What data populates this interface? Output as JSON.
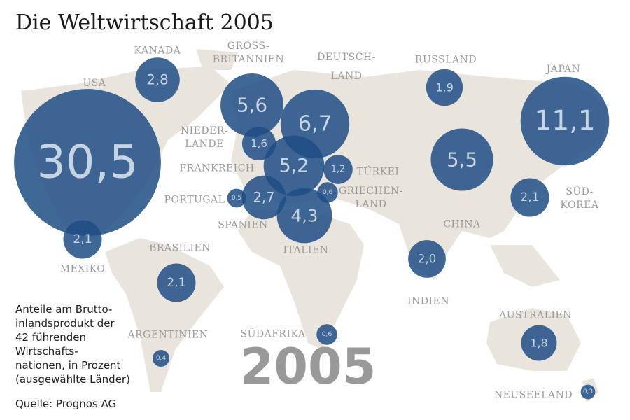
{
  "chart_data": {
    "type": "bubble_map",
    "title": "Die Weltwirtschaft 2005",
    "categories": [
      [
        "USA"
      ],
      [
        "KANADA"
      ],
      [
        "GROSS-",
        "BRITANNIEN"
      ],
      [
        "DEUTSCH-",
        "LAND"
      ],
      [
        "NIEDER-",
        "LANDE"
      ],
      [
        "FRANKREICH"
      ],
      [
        "TÜRKEI"
      ],
      [
        "GRIECHEN-",
        "LAND"
      ],
      [
        "PORTUGAL"
      ],
      [
        "SPANIEN"
      ],
      [
        "ITALIEN"
      ],
      [
        "RUSSLAND"
      ],
      [
        "CHINA"
      ],
      [
        "JAPAN"
      ],
      [
        "SÜD-",
        "KOREA"
      ],
      [
        "INDIEN"
      ],
      [
        "AUSTRALIEN"
      ],
      [
        "NEUSEELAND"
      ],
      [
        "MEXIKO"
      ],
      [
        "BRASILIEN"
      ],
      [
        "ARGENTINIEN"
      ],
      [
        "SÜDAFRIKA"
      ]
    ],
    "values": [
      30.5,
      2.8,
      5.6,
      6.7,
      1.6,
      5.2,
      1.2,
      0.6,
      0.5,
      2.7,
      4.3,
      1.9,
      5.5,
      11.1,
      2.1,
      2.0,
      1.8,
      0.3,
      2.1,
      2.1,
      0.4,
      0.6
    ],
    "value_labels": [
      "30,5",
      "2,8",
      "5,6",
      "6,7",
      "1,6",
      "5,2",
      "1,2",
      "0,6",
      "0,5",
      "2,7",
      "4,3",
      "1,9",
      "5,5",
      "11,1",
      "2,1",
      "2,0",
      "1,8",
      "0,3",
      "2,1",
      "2,1",
      "0,4",
      "0,6"
    ],
    "color": "#1f4e85",
    "year_label": "2005",
    "note": [
      "Anteile am Brutto-",
      "inlandsprodukt der",
      "42 führenden",
      "Wirtschafts-",
      "nationen, in Prozent",
      "(ausgewählte Länder)"
    ],
    "source": "Quelle: Prognos AG"
  }
}
